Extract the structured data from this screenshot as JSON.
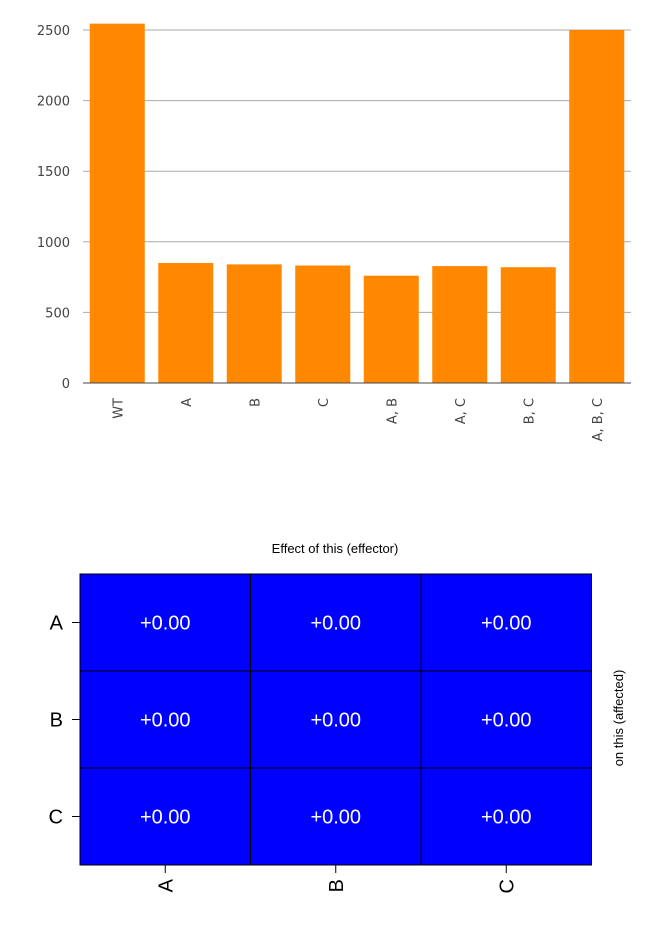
{
  "chart_data": [
    {
      "type": "bar",
      "categories": [
        "WT",
        "A",
        "B",
        "C",
        "A, B",
        "A, C",
        "B, C",
        "A, B, C"
      ],
      "values": [
        2545,
        850,
        840,
        832,
        760,
        828,
        820,
        2500
      ],
      "title": "",
      "xlabel": "",
      "ylabel": "",
      "ylim": [
        0,
        2500
      ],
      "yticks": [
        0,
        500,
        1000,
        1500,
        2000,
        2500
      ],
      "grid": true,
      "bar_color": "#ff8800",
      "grid_color": "#aaaaaa",
      "axis_color": "#444444"
    },
    {
      "type": "heatmap",
      "title": "Effect of this (effector)",
      "side_label": "on this (affected)",
      "rows": [
        "A",
        "B",
        "C"
      ],
      "columns": [
        "A",
        "B",
        "C"
      ],
      "cells": [
        [
          "+0.00",
          "+0.00",
          "+0.00"
        ],
        [
          "+0.00",
          "+0.00",
          "+0.00"
        ],
        [
          "+0.00",
          "+0.00",
          "+0.00"
        ]
      ],
      "cell_color": "#0000ff",
      "cell_text_color": "#ffffff",
      "border_color": "#000000"
    }
  ]
}
